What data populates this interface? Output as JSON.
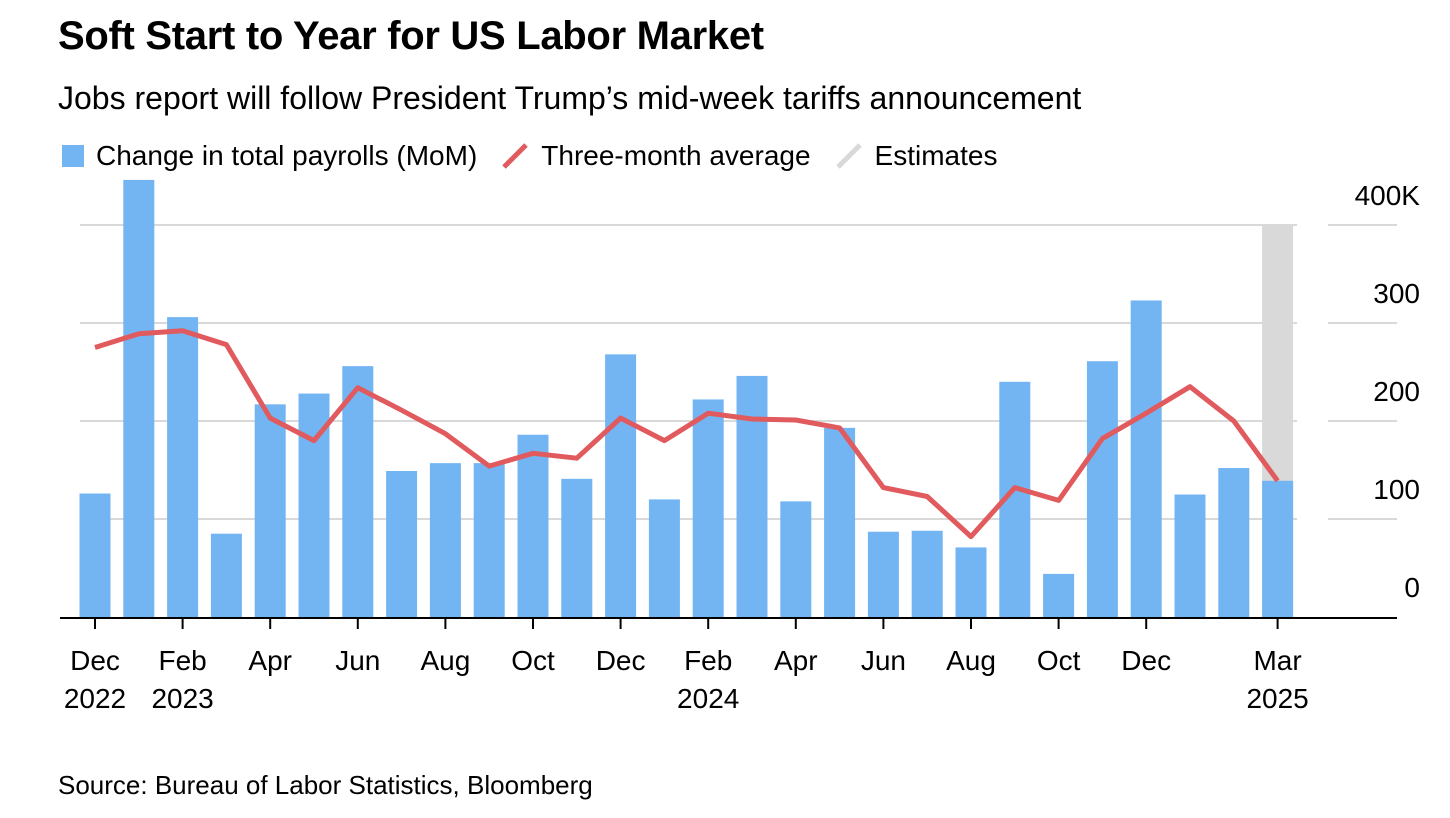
{
  "header": {
    "title": "Soft Start to Year for US Labor Market",
    "subtitle": "Jobs report will follow President Trump’s mid-week tariffs announcement"
  },
  "legend": {
    "bars_label": "Change in total payrolls (MoM)",
    "line_label": "Three-month average",
    "estimate_label": "Estimates"
  },
  "footer": {
    "source": "Source: Bureau of Labor Statistics, Bloomberg"
  },
  "colors": {
    "bars": "#73b5f2",
    "line": "#e05a5e",
    "estimate": "#d9d9d9",
    "grid": "#d9d9d9"
  },
  "chart_data": {
    "type": "bar",
    "combo_line_series": "Three-month average",
    "categories": [
      "Dec 2022",
      "Jan 2023",
      "Feb 2023",
      "Mar 2023",
      "Apr 2023",
      "May 2023",
      "Jun 2023",
      "Jul 2023",
      "Aug 2023",
      "Sep 2023",
      "Oct 2023",
      "Nov 2023",
      "Dec 2023",
      "Jan 2024",
      "Feb 2024",
      "Mar 2024",
      "Apr 2024",
      "May 2024",
      "Jun 2024",
      "Jul 2024",
      "Aug 2024",
      "Sep 2024",
      "Oct 2024",
      "Nov 2024",
      "Dec 2024",
      "Jan 2025",
      "Feb 2025",
      "Mar 2025"
    ],
    "series": [
      {
        "name": "Change in total payrolls (MoM)",
        "type": "bar",
        "values": [
          126,
          446,
          306,
          85,
          217,
          228,
          256,
          149,
          157,
          157,
          186,
          141,
          268,
          120,
          222,
          246,
          118,
          193,
          87,
          88,
          71,
          240,
          44,
          261,
          323,
          125,
          152,
          139
        ]
      },
      {
        "name": "Three-month average",
        "type": "line",
        "values": [
          275,
          289,
          292,
          278,
          203,
          180,
          234,
          211,
          187,
          154,
          167,
          162,
          203,
          180,
          208,
          202,
          201,
          193,
          132,
          123,
          82,
          132,
          119,
          182,
          208,
          235,
          200,
          139
        ]
      }
    ],
    "estimate_category": "Mar 2025",
    "x_tick_labels": [
      {
        "category": "Dec 2022",
        "month": "Dec",
        "year": "2022"
      },
      {
        "category": "Feb 2023",
        "month": "Feb",
        "year": "2023"
      },
      {
        "category": "Apr 2023",
        "month": "Apr",
        "year": ""
      },
      {
        "category": "Jun 2023",
        "month": "Jun",
        "year": ""
      },
      {
        "category": "Aug 2023",
        "month": "Aug",
        "year": ""
      },
      {
        "category": "Oct 2023",
        "month": "Oct",
        "year": ""
      },
      {
        "category": "Dec 2023",
        "month": "Dec",
        "year": ""
      },
      {
        "category": "Feb 2024",
        "month": "Feb",
        "year": "2024"
      },
      {
        "category": "Apr 2024",
        "month": "Apr",
        "year": ""
      },
      {
        "category": "Jun 2024",
        "month": "Jun",
        "year": ""
      },
      {
        "category": "Aug 2024",
        "month": "Aug",
        "year": ""
      },
      {
        "category": "Oct 2024",
        "month": "Oct",
        "year": ""
      },
      {
        "category": "Dec 2024",
        "month": "Dec",
        "year": ""
      },
      {
        "category": "Mar 2025",
        "month": "Mar",
        "year": "2025"
      }
    ],
    "y_ticks": [
      {
        "value": 0,
        "label": "0"
      },
      {
        "value": 100,
        "label": "100"
      },
      {
        "value": 200,
        "label": "200"
      },
      {
        "value": 300,
        "label": "300"
      },
      {
        "value": 400,
        "label": "400K"
      }
    ],
    "ylim": [
      0,
      400
    ],
    "y_axis_side": "right",
    "grid": true,
    "legend_position": "top-left"
  }
}
